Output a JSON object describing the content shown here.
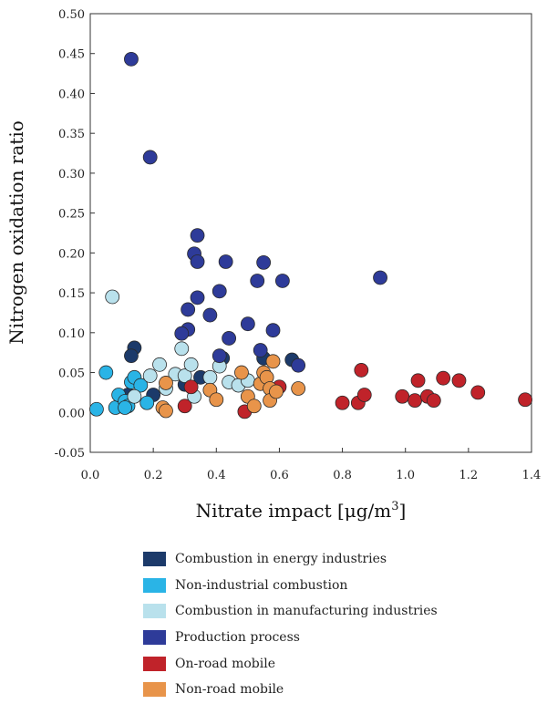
{
  "chart_data": {
    "type": "scatter",
    "xlabel_main": "Nitrate impact [μg/m",
    "xlabel_sup": "3",
    "xlabel_end": "]",
    "ylabel": "Nitrogen oxidation ratio",
    "xlim": [
      0.0,
      1.4
    ],
    "ylim": [
      -0.05,
      0.5
    ],
    "x_ticks": [
      "0.0",
      "0.2",
      "0.4",
      "0.6",
      "0.8",
      "1.0",
      "1.2",
      "1.4"
    ],
    "y_ticks": [
      "-0.05",
      "0.00",
      "0.05",
      "0.10",
      "0.15",
      "0.20",
      "0.25",
      "0.30",
      "0.35",
      "0.40",
      "0.45",
      "0.50"
    ],
    "grid": false,
    "legend_position": "bottom",
    "series": [
      {
        "name": "Combustion in energy industries",
        "color": "#1c3a6a",
        "points": [
          [
            0.14,
            0.081
          ],
          [
            0.13,
            0.071
          ],
          [
            0.12,
            0.022
          ],
          [
            0.2,
            0.022
          ],
          [
            0.3,
            0.035
          ],
          [
            0.35,
            0.044
          ],
          [
            0.42,
            0.068
          ],
          [
            0.55,
            0.068
          ],
          [
            0.64,
            0.066
          ]
        ]
      },
      {
        "name": "Non-industrial combustion",
        "color": "#2ab4e6",
        "points": [
          [
            0.02,
            0.004
          ],
          [
            0.05,
            0.05
          ],
          [
            0.08,
            0.006
          ],
          [
            0.09,
            0.022
          ],
          [
            0.11,
            0.014
          ],
          [
            0.12,
            0.008
          ],
          [
            0.13,
            0.038
          ],
          [
            0.14,
            0.044
          ],
          [
            0.16,
            0.034
          ],
          [
            0.18,
            0.012
          ],
          [
            0.11,
            0.006
          ]
        ]
      },
      {
        "name": "Combustion in manufacturing industries",
        "color": "#b9e1ec",
        "points": [
          [
            0.07,
            0.145
          ],
          [
            0.14,
            0.02
          ],
          [
            0.19,
            0.046
          ],
          [
            0.22,
            0.06
          ],
          [
            0.24,
            0.03
          ],
          [
            0.27,
            0.048
          ],
          [
            0.29,
            0.08
          ],
          [
            0.3,
            0.046
          ],
          [
            0.32,
            0.06
          ],
          [
            0.33,
            0.02
          ],
          [
            0.38,
            0.044
          ],
          [
            0.41,
            0.058
          ],
          [
            0.44,
            0.038
          ],
          [
            0.47,
            0.034
          ],
          [
            0.5,
            0.04
          ]
        ]
      },
      {
        "name": "Production process",
        "color": "#2e3b99",
        "points": [
          [
            0.13,
            0.443
          ],
          [
            0.19,
            0.32
          ],
          [
            0.34,
            0.222
          ],
          [
            0.33,
            0.199
          ],
          [
            0.34,
            0.189
          ],
          [
            0.43,
            0.189
          ],
          [
            0.55,
            0.188
          ],
          [
            0.53,
            0.165
          ],
          [
            0.61,
            0.165
          ],
          [
            0.92,
            0.169
          ],
          [
            0.41,
            0.152
          ],
          [
            0.34,
            0.144
          ],
          [
            0.31,
            0.129
          ],
          [
            0.38,
            0.122
          ],
          [
            0.5,
            0.111
          ],
          [
            0.31,
            0.104
          ],
          [
            0.29,
            0.099
          ],
          [
            0.58,
            0.103
          ],
          [
            0.44,
            0.093
          ],
          [
            0.54,
            0.078
          ],
          [
            0.41,
            0.071
          ],
          [
            0.66,
            0.059
          ]
        ]
      },
      {
        "name": "On-road mobile",
        "color": "#c0232a",
        "points": [
          [
            0.3,
            0.008
          ],
          [
            0.32,
            0.032
          ],
          [
            0.49,
            0.001
          ],
          [
            0.6,
            0.032
          ],
          [
            0.8,
            0.012
          ],
          [
            0.85,
            0.012
          ],
          [
            0.86,
            0.053
          ],
          [
            0.87,
            0.022
          ],
          [
            0.99,
            0.02
          ],
          [
            1.03,
            0.015
          ],
          [
            1.04,
            0.04
          ],
          [
            1.07,
            0.02
          ],
          [
            1.09,
            0.015
          ],
          [
            1.12,
            0.043
          ],
          [
            1.17,
            0.04
          ],
          [
            1.23,
            0.025
          ],
          [
            1.38,
            0.016
          ]
        ]
      },
      {
        "name": "Non-road mobile",
        "color": "#e8944a",
        "points": [
          [
            0.23,
            0.006
          ],
          [
            0.24,
            0.002
          ],
          [
            0.24,
            0.037
          ],
          [
            0.38,
            0.028
          ],
          [
            0.4,
            0.016
          ],
          [
            0.48,
            0.05
          ],
          [
            0.5,
            0.02
          ],
          [
            0.52,
            0.008
          ],
          [
            0.54,
            0.036
          ],
          [
            0.55,
            0.05
          ],
          [
            0.56,
            0.044
          ],
          [
            0.57,
            0.03
          ],
          [
            0.57,
            0.015
          ],
          [
            0.58,
            0.064
          ],
          [
            0.59,
            0.026
          ],
          [
            0.66,
            0.03
          ]
        ]
      }
    ]
  }
}
